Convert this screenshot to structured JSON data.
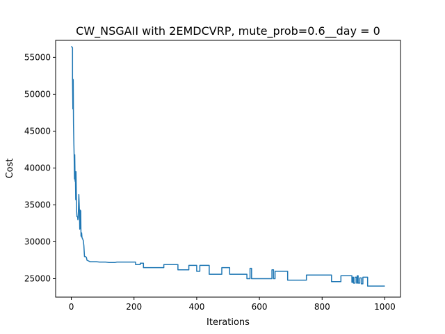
{
  "chart_data": {
    "type": "line",
    "title": "CW_NSGAII with 2EMDCVRP, mute_prob=0.6__day = 0",
    "xlabel": "Iterations",
    "ylabel": "Cost",
    "xlim": [
      -50,
      1050
    ],
    "ylim": [
      22500,
      57300
    ],
    "xticks": [
      0,
      200,
      400,
      600,
      800,
      1000
    ],
    "xtick_labels": [
      "0",
      "200",
      "400",
      "600",
      "800",
      "1000"
    ],
    "yticks": [
      25000,
      30000,
      35000,
      40000,
      45000,
      50000,
      55000
    ],
    "ytick_labels": [
      "25000",
      "30000",
      "35000",
      "40000",
      "45000",
      "50000",
      "55000"
    ],
    "grid": false,
    "series": [
      {
        "name": "cost",
        "color": "#1f77b4",
        "x": [
          0,
          4,
          4,
          5,
          6,
          7,
          8,
          9,
          10,
          11,
          12,
          13,
          14,
          15,
          16,
          17,
          18,
          19,
          20,
          21,
          22,
          24,
          26,
          27,
          28,
          29,
          30,
          31,
          32,
          33,
          34,
          35,
          36,
          37,
          38,
          40,
          42,
          45,
          48,
          50,
          55,
          60,
          65,
          70,
          80,
          90,
          100,
          110,
          120,
          140,
          145,
          150,
          160,
          180,
          200,
          205,
          205,
          220,
          220,
          230,
          230,
          295,
          295,
          340,
          340,
          375,
          375,
          400,
          400,
          410,
          410,
          440,
          440,
          480,
          480,
          505,
          505,
          560,
          560,
          570,
          570,
          575,
          575,
          640,
          640,
          645,
          645,
          650,
          650,
          690,
          690,
          750,
          750,
          830,
          830,
          860,
          860,
          895,
          895,
          898,
          898,
          900,
          900,
          905,
          905,
          910,
          910,
          912,
          912,
          915,
          915,
          920,
          920,
          925,
          925,
          930,
          930,
          945,
          945,
          1000
        ],
        "y": [
          56500,
          56300,
          52000,
          48000,
          52000,
          46000,
          43500,
          41800,
          38500,
          41800,
          38200,
          39500,
          35700,
          39500,
          36500,
          34200,
          33400,
          33400,
          33400,
          33000,
          33300,
          36400,
          34000,
          31700,
          34300,
          31800,
          34200,
          30800,
          30700,
          31200,
          30600,
          30500,
          30400,
          30300,
          30200,
          29500,
          28000,
          28000,
          27900,
          27500,
          27400,
          27300,
          27300,
          27300,
          27300,
          27250,
          27250,
          27250,
          27200,
          27200,
          27250,
          27250,
          27250,
          27250,
          27250,
          27250,
          26900,
          26900,
          27100,
          27100,
          26500,
          26500,
          26900,
          26900,
          26200,
          26200,
          26800,
          26800,
          26000,
          26000,
          26800,
          26800,
          25600,
          25600,
          26500,
          26500,
          25600,
          25600,
          25000,
          25000,
          26400,
          26400,
          25000,
          25000,
          26200,
          26200,
          25000,
          25000,
          26000,
          26000,
          24800,
          24800,
          25500,
          25500,
          24600,
          24600,
          25400,
          25400,
          24500,
          24500,
          25200,
          25200,
          24400,
          24400,
          25200,
          25200,
          24400,
          24400,
          25400,
          25400,
          24400,
          24400,
          25100,
          25100,
          24300,
          24300,
          25200,
          25200,
          24000,
          24000
        ]
      }
    ]
  }
}
